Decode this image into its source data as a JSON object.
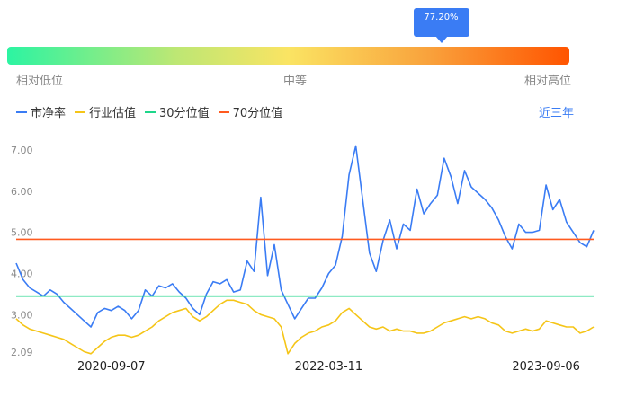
{
  "tooltip": {
    "value": "77.20%",
    "position_pct": 77.2
  },
  "gauge": {
    "low": "相对低位",
    "mid": "中等",
    "high": "相对高位"
  },
  "legend": [
    {
      "label": "市净率",
      "color": "#3a7cf4"
    },
    {
      "label": "行业估值",
      "color": "#f5c518"
    },
    {
      "label": "30分位值",
      "color": "#1ed68a"
    },
    {
      "label": "70分位值",
      "color": "#ff5a1f"
    }
  ],
  "range_selector": "近三年",
  "chart_data": {
    "type": "line",
    "title": "",
    "ylim": [
      2.09,
      7.0
    ],
    "y_ticks": [
      "7.00",
      "6.00",
      "5.00",
      "4.00",
      "3.00",
      "2.09"
    ],
    "y_tick_values": [
      7.0,
      6.0,
      5.0,
      4.0,
      3.0,
      2.09
    ],
    "x_ticks": [
      "2020-09-07",
      "2022-03-11",
      "2023-09-06"
    ],
    "x_tick_index": [
      14,
      46,
      78
    ],
    "series": [
      {
        "name": "市净率",
        "color": "#3a7cf4",
        "values": [
          4.25,
          3.85,
          3.65,
          3.55,
          3.45,
          3.6,
          3.5,
          3.3,
          3.15,
          3.0,
          2.85,
          2.7,
          3.05,
          3.15,
          3.1,
          3.2,
          3.1,
          2.9,
          3.1,
          3.6,
          3.45,
          3.7,
          3.65,
          3.75,
          3.55,
          3.4,
          3.15,
          3.0,
          3.5,
          3.8,
          3.75,
          3.85,
          3.55,
          3.6,
          4.3,
          4.05,
          5.85,
          3.95,
          4.7,
          3.6,
          3.25,
          2.9,
          3.15,
          3.4,
          3.4,
          3.65,
          4.0,
          4.2,
          4.9,
          6.4,
          7.1,
          5.8,
          4.5,
          4.05,
          4.8,
          5.3,
          4.6,
          5.2,
          5.05,
          6.05,
          5.45,
          5.7,
          5.9,
          6.8,
          6.35,
          5.7,
          6.5,
          6.1,
          5.95,
          5.8,
          5.6,
          5.3,
          4.9,
          4.6,
          5.2,
          5.0,
          5.0,
          5.05,
          6.15,
          5.55,
          5.8,
          5.25,
          5.0,
          4.75,
          4.65,
          5.05
        ]
      },
      {
        "name": "行业估值",
        "color": "#f5c518",
        "values": [
          2.9,
          2.75,
          2.65,
          2.6,
          2.55,
          2.5,
          2.45,
          2.4,
          2.3,
          2.2,
          2.1,
          2.05,
          2.2,
          2.35,
          2.45,
          2.5,
          2.5,
          2.45,
          2.5,
          2.6,
          2.7,
          2.85,
          2.95,
          3.05,
          3.1,
          3.15,
          2.95,
          2.85,
          2.95,
          3.1,
          3.25,
          3.35,
          3.35,
          3.3,
          3.25,
          3.1,
          3.0,
          2.95,
          2.9,
          2.7,
          2.05,
          2.3,
          2.45,
          2.55,
          2.6,
          2.7,
          2.75,
          2.85,
          3.05,
          3.15,
          3.0,
          2.85,
          2.7,
          2.65,
          2.7,
          2.6,
          2.65,
          2.6,
          2.6,
          2.55,
          2.55,
          2.6,
          2.7,
          2.8,
          2.85,
          2.9,
          2.95,
          2.9,
          2.95,
          2.9,
          2.8,
          2.75,
          2.6,
          2.55,
          2.6,
          2.65,
          2.6,
          2.65,
          2.85,
          2.8,
          2.75,
          2.7,
          2.7,
          2.55,
          2.6,
          2.7
        ]
      }
    ],
    "reference_lines": [
      {
        "name": "30分位值",
        "value": 3.45,
        "color": "#1ed68a"
      },
      {
        "name": "70分位值",
        "value": 4.83,
        "color": "#ff5a1f"
      }
    ]
  }
}
